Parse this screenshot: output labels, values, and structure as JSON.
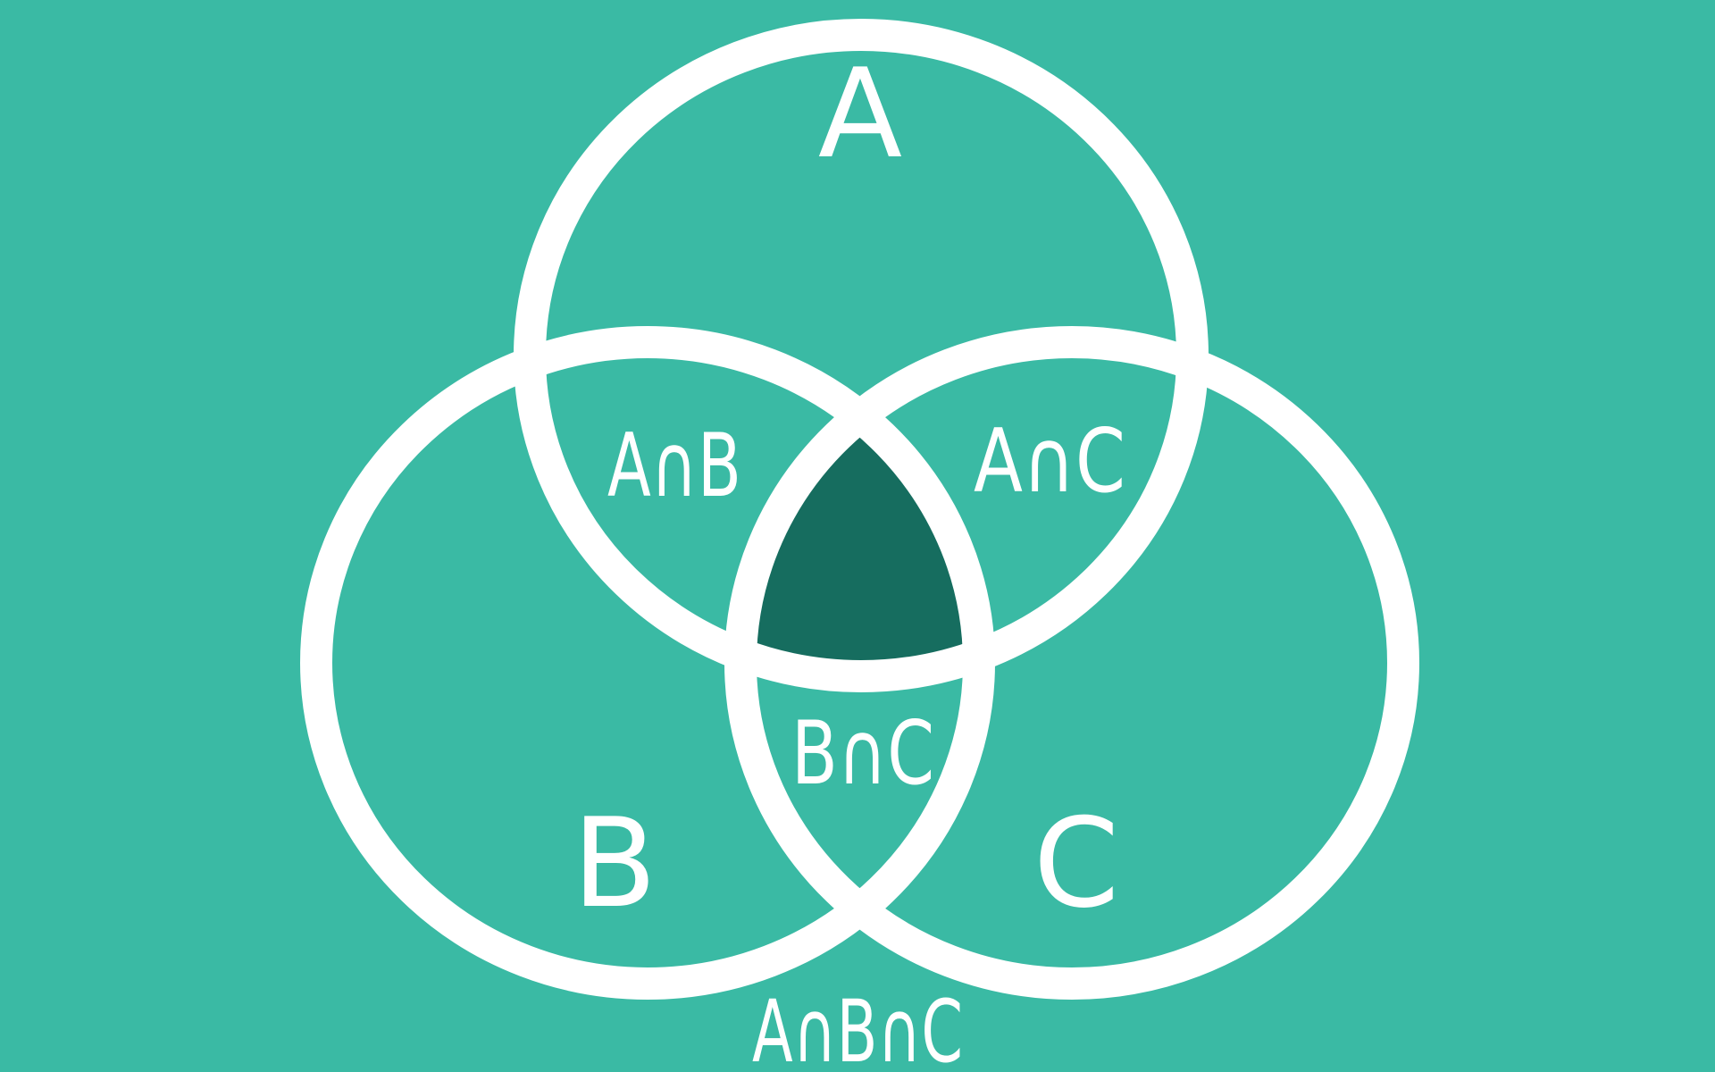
{
  "colors": {
    "background": "#3abaa4",
    "ring": "#ffffff",
    "triple_intersection": "#166d5f"
  },
  "sets": {
    "a": "A",
    "b": "B",
    "c": "C"
  },
  "intersections": {
    "a_and_b": "A∩B",
    "a_and_c": "A∩C",
    "b_and_c": "B∩C",
    "a_and_b_and_c": "A∩B∩C"
  }
}
